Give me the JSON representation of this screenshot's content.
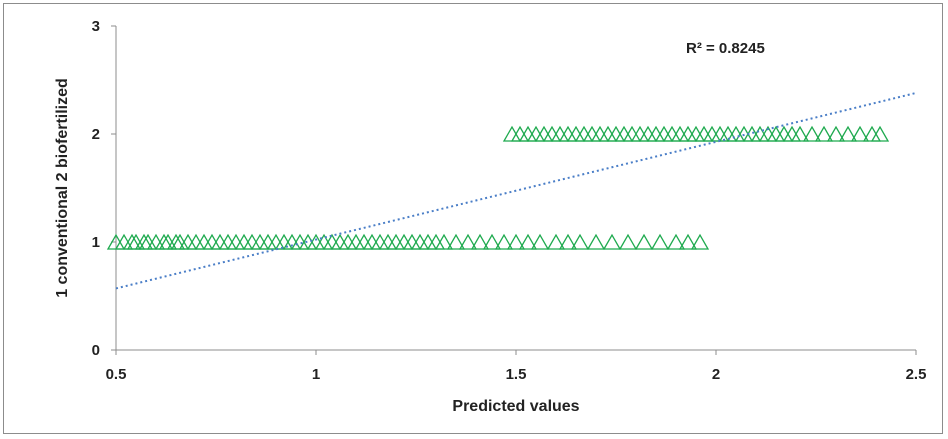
{
  "chart_data": {
    "type": "scatter",
    "xlabel": "Predicted values",
    "ylabel": "1 conventional   2 biofertilized",
    "xlim": [
      0.5,
      2.5
    ],
    "ylim": [
      0,
      3
    ],
    "x_ticks": [
      "0.5",
      "1",
      "1.5",
      "2",
      "2.5"
    ],
    "y_ticks": [
      "0",
      "1",
      "2",
      "3"
    ],
    "grid": false,
    "legend": "none",
    "marker": "triangle-open",
    "marker_color": "#1faa4f",
    "trendline_color": "#4a7ec7",
    "annotation": "R² = 0.8245",
    "trendline": {
      "type": "linear",
      "x": [
        0.5,
        2.5
      ],
      "y": [
        0.57,
        2.38
      ]
    },
    "series": [
      {
        "y": 1,
        "x": [
          0.5,
          0.52,
          0.54,
          0.55,
          0.57,
          0.58,
          0.6,
          0.62,
          0.63,
          0.65,
          0.66,
          0.68,
          0.7,
          0.72,
          0.74,
          0.76,
          0.78,
          0.8,
          0.82,
          0.84,
          0.86,
          0.88,
          0.9,
          0.92,
          0.94,
          0.96,
          0.98,
          1.0,
          1.02,
          1.04,
          1.06,
          1.08,
          1.1,
          1.12,
          1.14,
          1.16,
          1.18,
          1.2,
          1.22,
          1.24,
          1.26,
          1.28,
          1.3,
          1.32,
          1.35,
          1.38,
          1.41,
          1.44,
          1.47,
          1.5,
          1.53,
          1.56,
          1.6,
          1.63,
          1.66,
          1.7,
          1.74,
          1.78,
          1.82,
          1.86,
          1.9,
          1.93,
          1.96
        ]
      },
      {
        "y": 2,
        "x": [
          1.49,
          1.51,
          1.53,
          1.55,
          1.57,
          1.59,
          1.61,
          1.63,
          1.65,
          1.67,
          1.69,
          1.71,
          1.73,
          1.75,
          1.77,
          1.79,
          1.81,
          1.83,
          1.85,
          1.87,
          1.89,
          1.91,
          1.93,
          1.95,
          1.97,
          1.99,
          2.01,
          2.03,
          2.05,
          2.07,
          2.09,
          2.11,
          2.13,
          2.15,
          2.17,
          2.19,
          2.21,
          2.24,
          2.27,
          2.3,
          2.33,
          2.36,
          2.39,
          2.41
        ]
      }
    ]
  }
}
